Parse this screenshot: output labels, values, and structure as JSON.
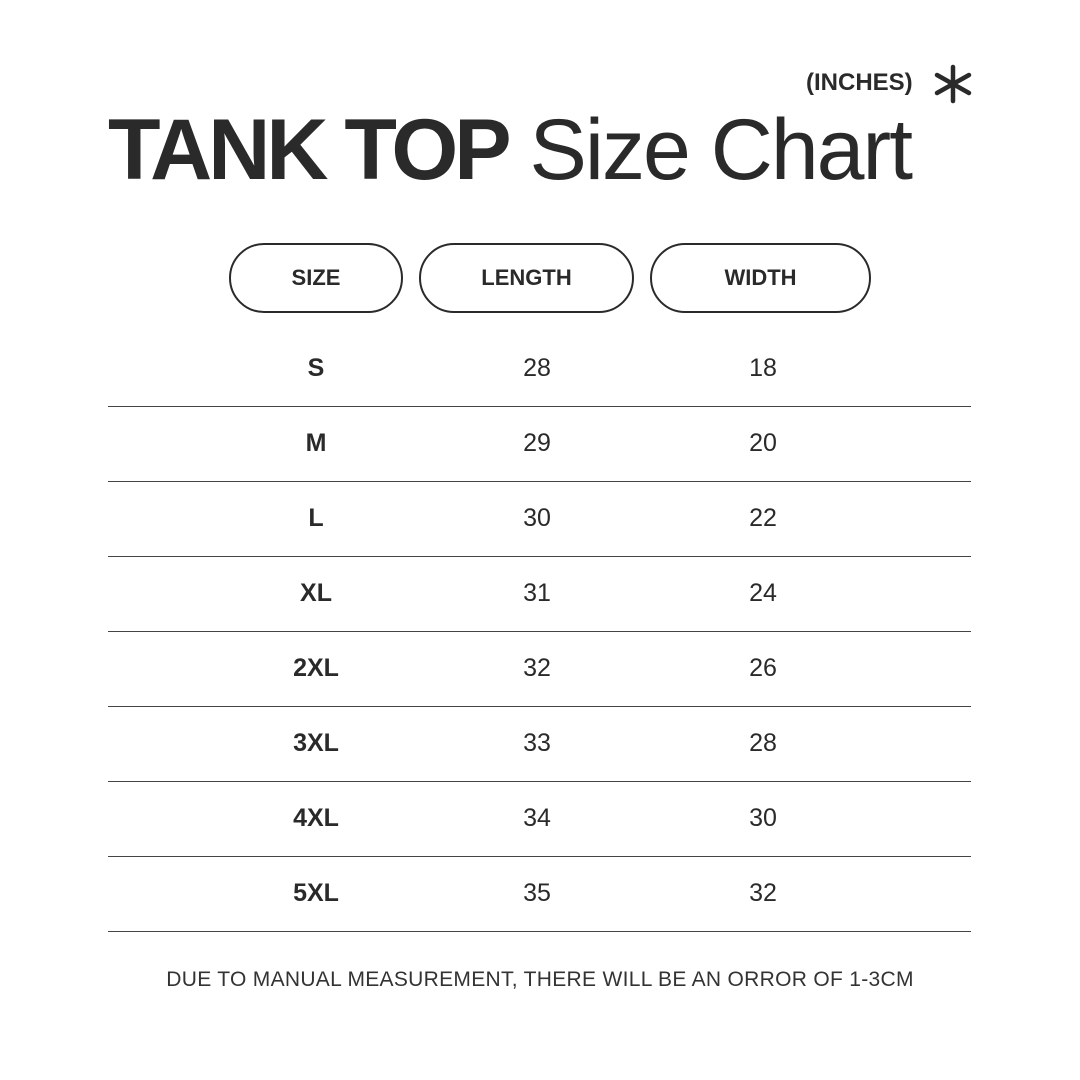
{
  "title": {
    "bold": "TANK TOP",
    "regular": "Size Chart"
  },
  "units": "(INCHES)",
  "units_icon": "asterisk-icon",
  "headers": [
    "SIZE",
    "LENGTH",
    "WIDTH"
  ],
  "rows": [
    {
      "size": "S",
      "length": "28",
      "width": "18"
    },
    {
      "size": "M",
      "length": "29",
      "width": "20"
    },
    {
      "size": "L",
      "length": "30",
      "width": "22"
    },
    {
      "size": "XL",
      "length": "31",
      "width": "24"
    },
    {
      "size": "2XL",
      "length": "32",
      "width": "26"
    },
    {
      "size": "3XL",
      "length": "33",
      "width": "28"
    },
    {
      "size": "4XL",
      "length": "34",
      "width": "30"
    },
    {
      "size": "5XL",
      "length": "35",
      "width": "32"
    }
  ],
  "footer": "DUE TO MANUAL MEASUREMENT, THERE WILL BE AN ORROR OF 1-3CM"
}
